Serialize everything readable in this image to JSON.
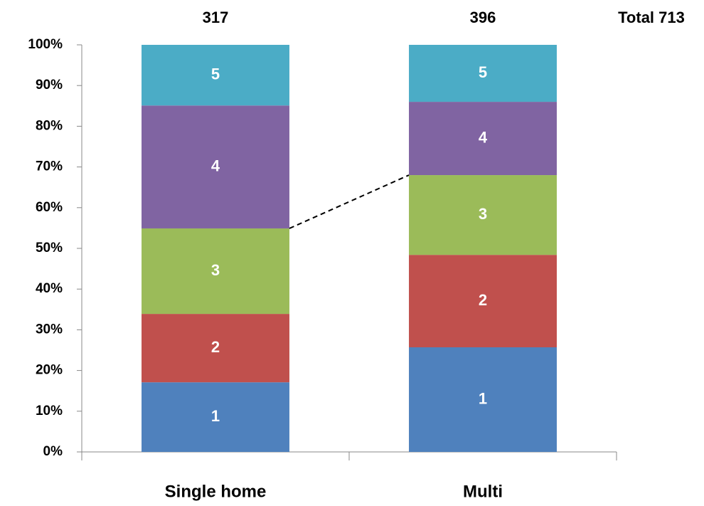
{
  "chart_data": {
    "type": "stacked_bar_percent",
    "categories": [
      "Single home",
      "Multi"
    ],
    "totals": [
      317,
      396
    ],
    "total_label": "Total 713",
    "series": [
      {
        "name": "1",
        "color": "#4f81bd",
        "values": [
          17.1,
          25.7
        ]
      },
      {
        "name": "2",
        "color": "#c0504d",
        "values": [
          16.8,
          22.7
        ]
      },
      {
        "name": "3",
        "color": "#9bbb59",
        "values": [
          21.0,
          19.6
        ]
      },
      {
        "name": "4",
        "color": "#8064a2",
        "values": [
          30.2,
          18.0
        ]
      },
      {
        "name": "5",
        "color": "#4bacc6",
        "values": [
          14.9,
          14.0
        ]
      }
    ],
    "ylim": [
      0,
      100
    ],
    "yticks": [
      {
        "value": 0,
        "label": "0%"
      },
      {
        "value": 10,
        "label": "10%"
      },
      {
        "value": 20,
        "label": "20%"
      },
      {
        "value": 30,
        "label": "30%"
      },
      {
        "value": 40,
        "label": "40%"
      },
      {
        "value": 50,
        "label": "50%"
      },
      {
        "value": 60,
        "label": "60%"
      },
      {
        "value": 70,
        "label": "70%"
      },
      {
        "value": 80,
        "label": "80%"
      },
      {
        "value": 90,
        "label": "90%"
      },
      {
        "value": 100,
        "label": "100%"
      }
    ]
  }
}
